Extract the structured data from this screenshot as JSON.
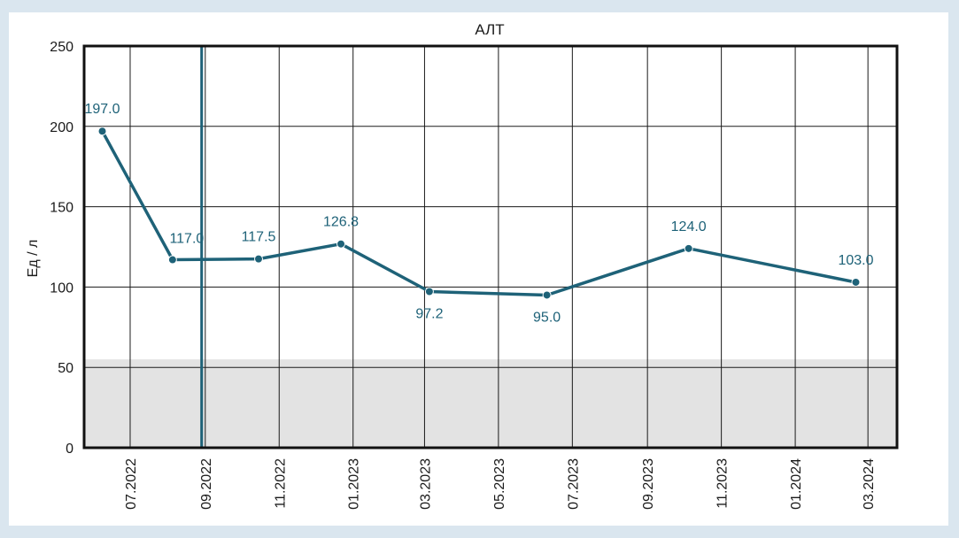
{
  "chart_data": {
    "type": "line",
    "title": "АЛТ",
    "ylabel": "Ед / л",
    "xlabel": "",
    "ylim": [
      0,
      250
    ],
    "yticks": [
      0,
      50,
      100,
      150,
      200,
      250
    ],
    "xlim": [
      "2022-05-24",
      "2024-03-25"
    ],
    "xtick_labels": [
      "07.2022",
      "09.2022",
      "11.2022",
      "01.2023",
      "03.2023",
      "05.2023",
      "07.2023",
      "09.2023",
      "11.2023",
      "01.2024",
      "03.2024"
    ],
    "xtick_dates": [
      "2022-07-01",
      "2022-09-01",
      "2022-11-01",
      "2023-01-01",
      "2023-03-01",
      "2023-05-01",
      "2023-07-01",
      "2023-09-01",
      "2023-11-01",
      "2024-01-01",
      "2024-03-01"
    ],
    "grid": true,
    "reference_range": [
      0,
      55
    ],
    "reference_color": "#e3e3e3",
    "marker_line_date": "2022-08-29",
    "marker_line_color": "#1e6278",
    "series": [
      {
        "color": "#1e6278",
        "x": [
          "2022-06-08",
          "2022-08-05",
          "2022-10-15",
          "2022-12-22",
          "2023-03-05",
          "2023-06-10",
          "2023-10-05",
          "2024-02-20"
        ],
        "values": [
          197.0,
          117.0,
          117.5,
          126.8,
          97.2,
          95.0,
          124.0,
          103.0
        ],
        "labels": [
          "197.0",
          "117.0",
          "117.5",
          "126.8",
          "97.2",
          "95.0",
          "124.0",
          "103.0"
        ],
        "label_positions": [
          "above",
          "above-right",
          "above",
          "above",
          "below",
          "below",
          "above",
          "above"
        ]
      }
    ]
  }
}
